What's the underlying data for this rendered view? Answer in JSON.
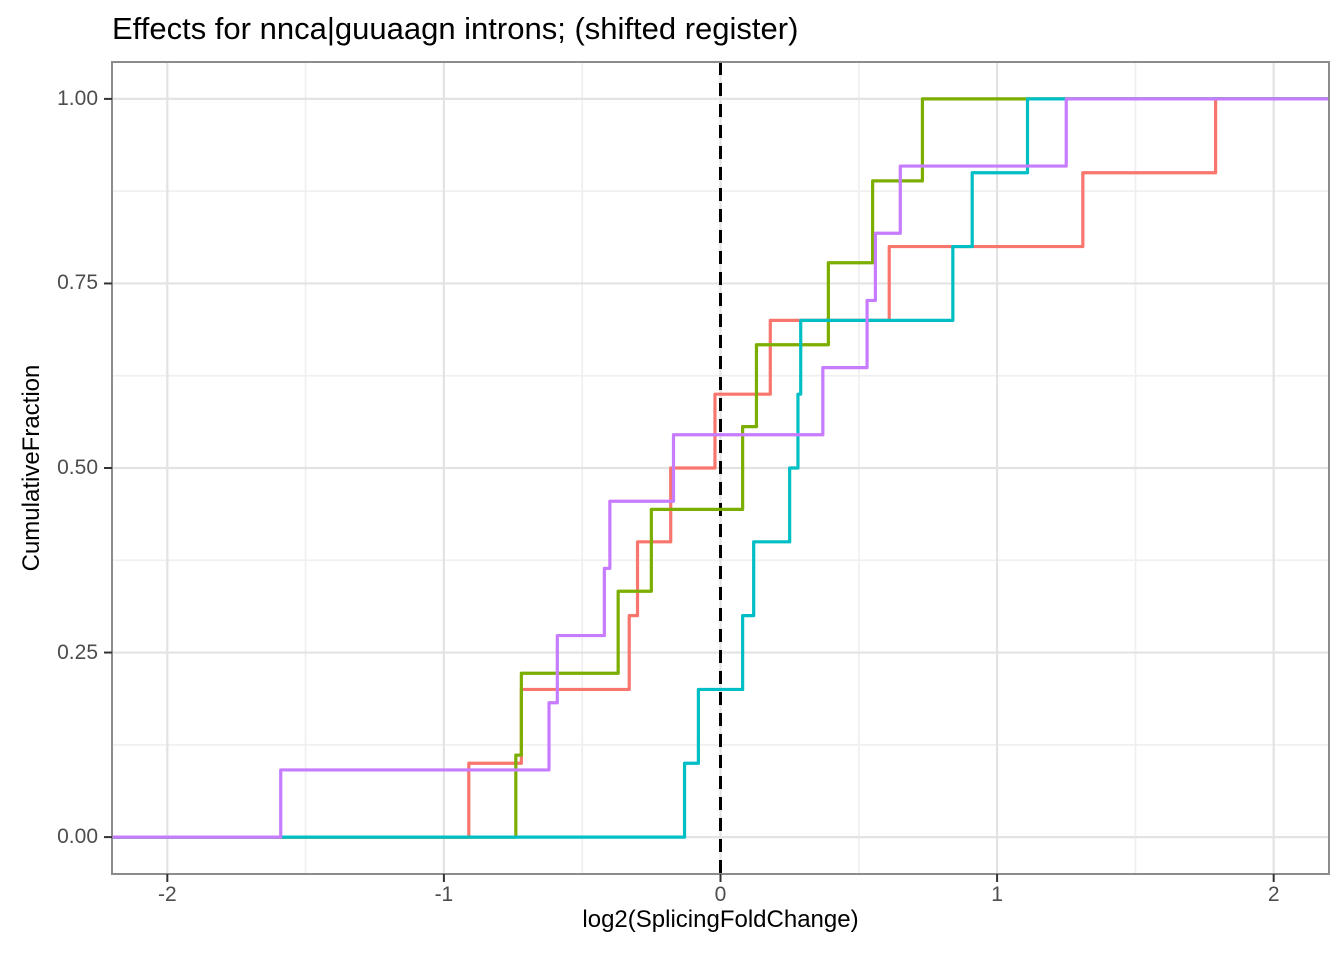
{
  "chart_data": {
    "type": "line",
    "subtype": "step-ecdf",
    "title": "Effects for nnca|guuaagn introns; (shifted register)",
    "xlabel": "log2(SplicingFoldChange)",
    "ylabel": "CumulativeFraction",
    "xlim": [
      -2.2,
      2.2
    ],
    "ylim": [
      -0.05,
      1.05
    ],
    "x_ticks": [
      -2,
      -1,
      0,
      1,
      2
    ],
    "x_tick_labels": [
      "-2",
      "-1",
      "0",
      "1",
      "2"
    ],
    "x_minor_gridlines": [
      -1.5,
      -0.5,
      0.5,
      1.5
    ],
    "y_ticks": [
      0,
      0.25,
      0.5,
      0.75,
      1
    ],
    "y_tick_labels": [
      "0.00",
      "0.25",
      "0.50",
      "0.75",
      "1.00"
    ],
    "y_minor_gridlines": [
      0.125,
      0.375,
      0.625,
      0.875
    ],
    "grid": "major+minor",
    "legend": "none",
    "background_color": "#ffffff",
    "major_grid_color": "#e3e3e3",
    "minor_grid_color": "#f0f0f0",
    "panel_border_color": "#8c8c8c",
    "tick_mark_color": "#333333",
    "tick_label_color": "#4d4d4d",
    "vline": {
      "x": 0,
      "style": "dashed",
      "color": "#000000"
    },
    "series": [
      {
        "name": "salmon",
        "color": "#F8766D",
        "n": 10,
        "steps": [
          [
            -0.91,
            0.1
          ],
          [
            -0.72,
            0.2
          ],
          [
            -0.33,
            0.3
          ],
          [
            -0.3,
            0.4
          ],
          [
            -0.18,
            0.5
          ],
          [
            -0.02,
            0.6
          ],
          [
            0.18,
            0.7
          ],
          [
            0.61,
            0.8
          ],
          [
            1.31,
            0.9
          ],
          [
            1.79,
            1.0
          ]
        ]
      },
      {
        "name": "green",
        "color": "#7CAE00",
        "n": 9,
        "steps": [
          [
            -0.74,
            0.111
          ],
          [
            -0.72,
            0.222
          ],
          [
            -0.37,
            0.333
          ],
          [
            -0.25,
            0.444
          ],
          [
            0.08,
            0.556
          ],
          [
            0.13,
            0.667
          ],
          [
            0.39,
            0.778
          ],
          [
            0.55,
            0.889
          ],
          [
            0.73,
            1.0
          ]
        ]
      },
      {
        "name": "teal",
        "color": "#00BFC4",
        "n": 10,
        "steps": [
          [
            -0.13,
            0.1
          ],
          [
            -0.08,
            0.2
          ],
          [
            0.08,
            0.3
          ],
          [
            0.12,
            0.4
          ],
          [
            0.25,
            0.5
          ],
          [
            0.28,
            0.6
          ],
          [
            0.29,
            0.7
          ],
          [
            0.84,
            0.8
          ],
          [
            0.91,
            0.9
          ],
          [
            1.11,
            1.0
          ]
        ]
      },
      {
        "name": "purple",
        "color": "#C77CFF",
        "n": 11,
        "steps": [
          [
            -1.59,
            0.091
          ],
          [
            -0.62,
            0.182
          ],
          [
            -0.59,
            0.273
          ],
          [
            -0.42,
            0.364
          ],
          [
            -0.4,
            0.455
          ],
          [
            -0.17,
            0.545
          ],
          [
            0.37,
            0.636
          ],
          [
            0.53,
            0.727
          ],
          [
            0.56,
            0.818
          ],
          [
            0.65,
            0.909
          ],
          [
            1.25,
            1.0
          ]
        ]
      }
    ]
  }
}
